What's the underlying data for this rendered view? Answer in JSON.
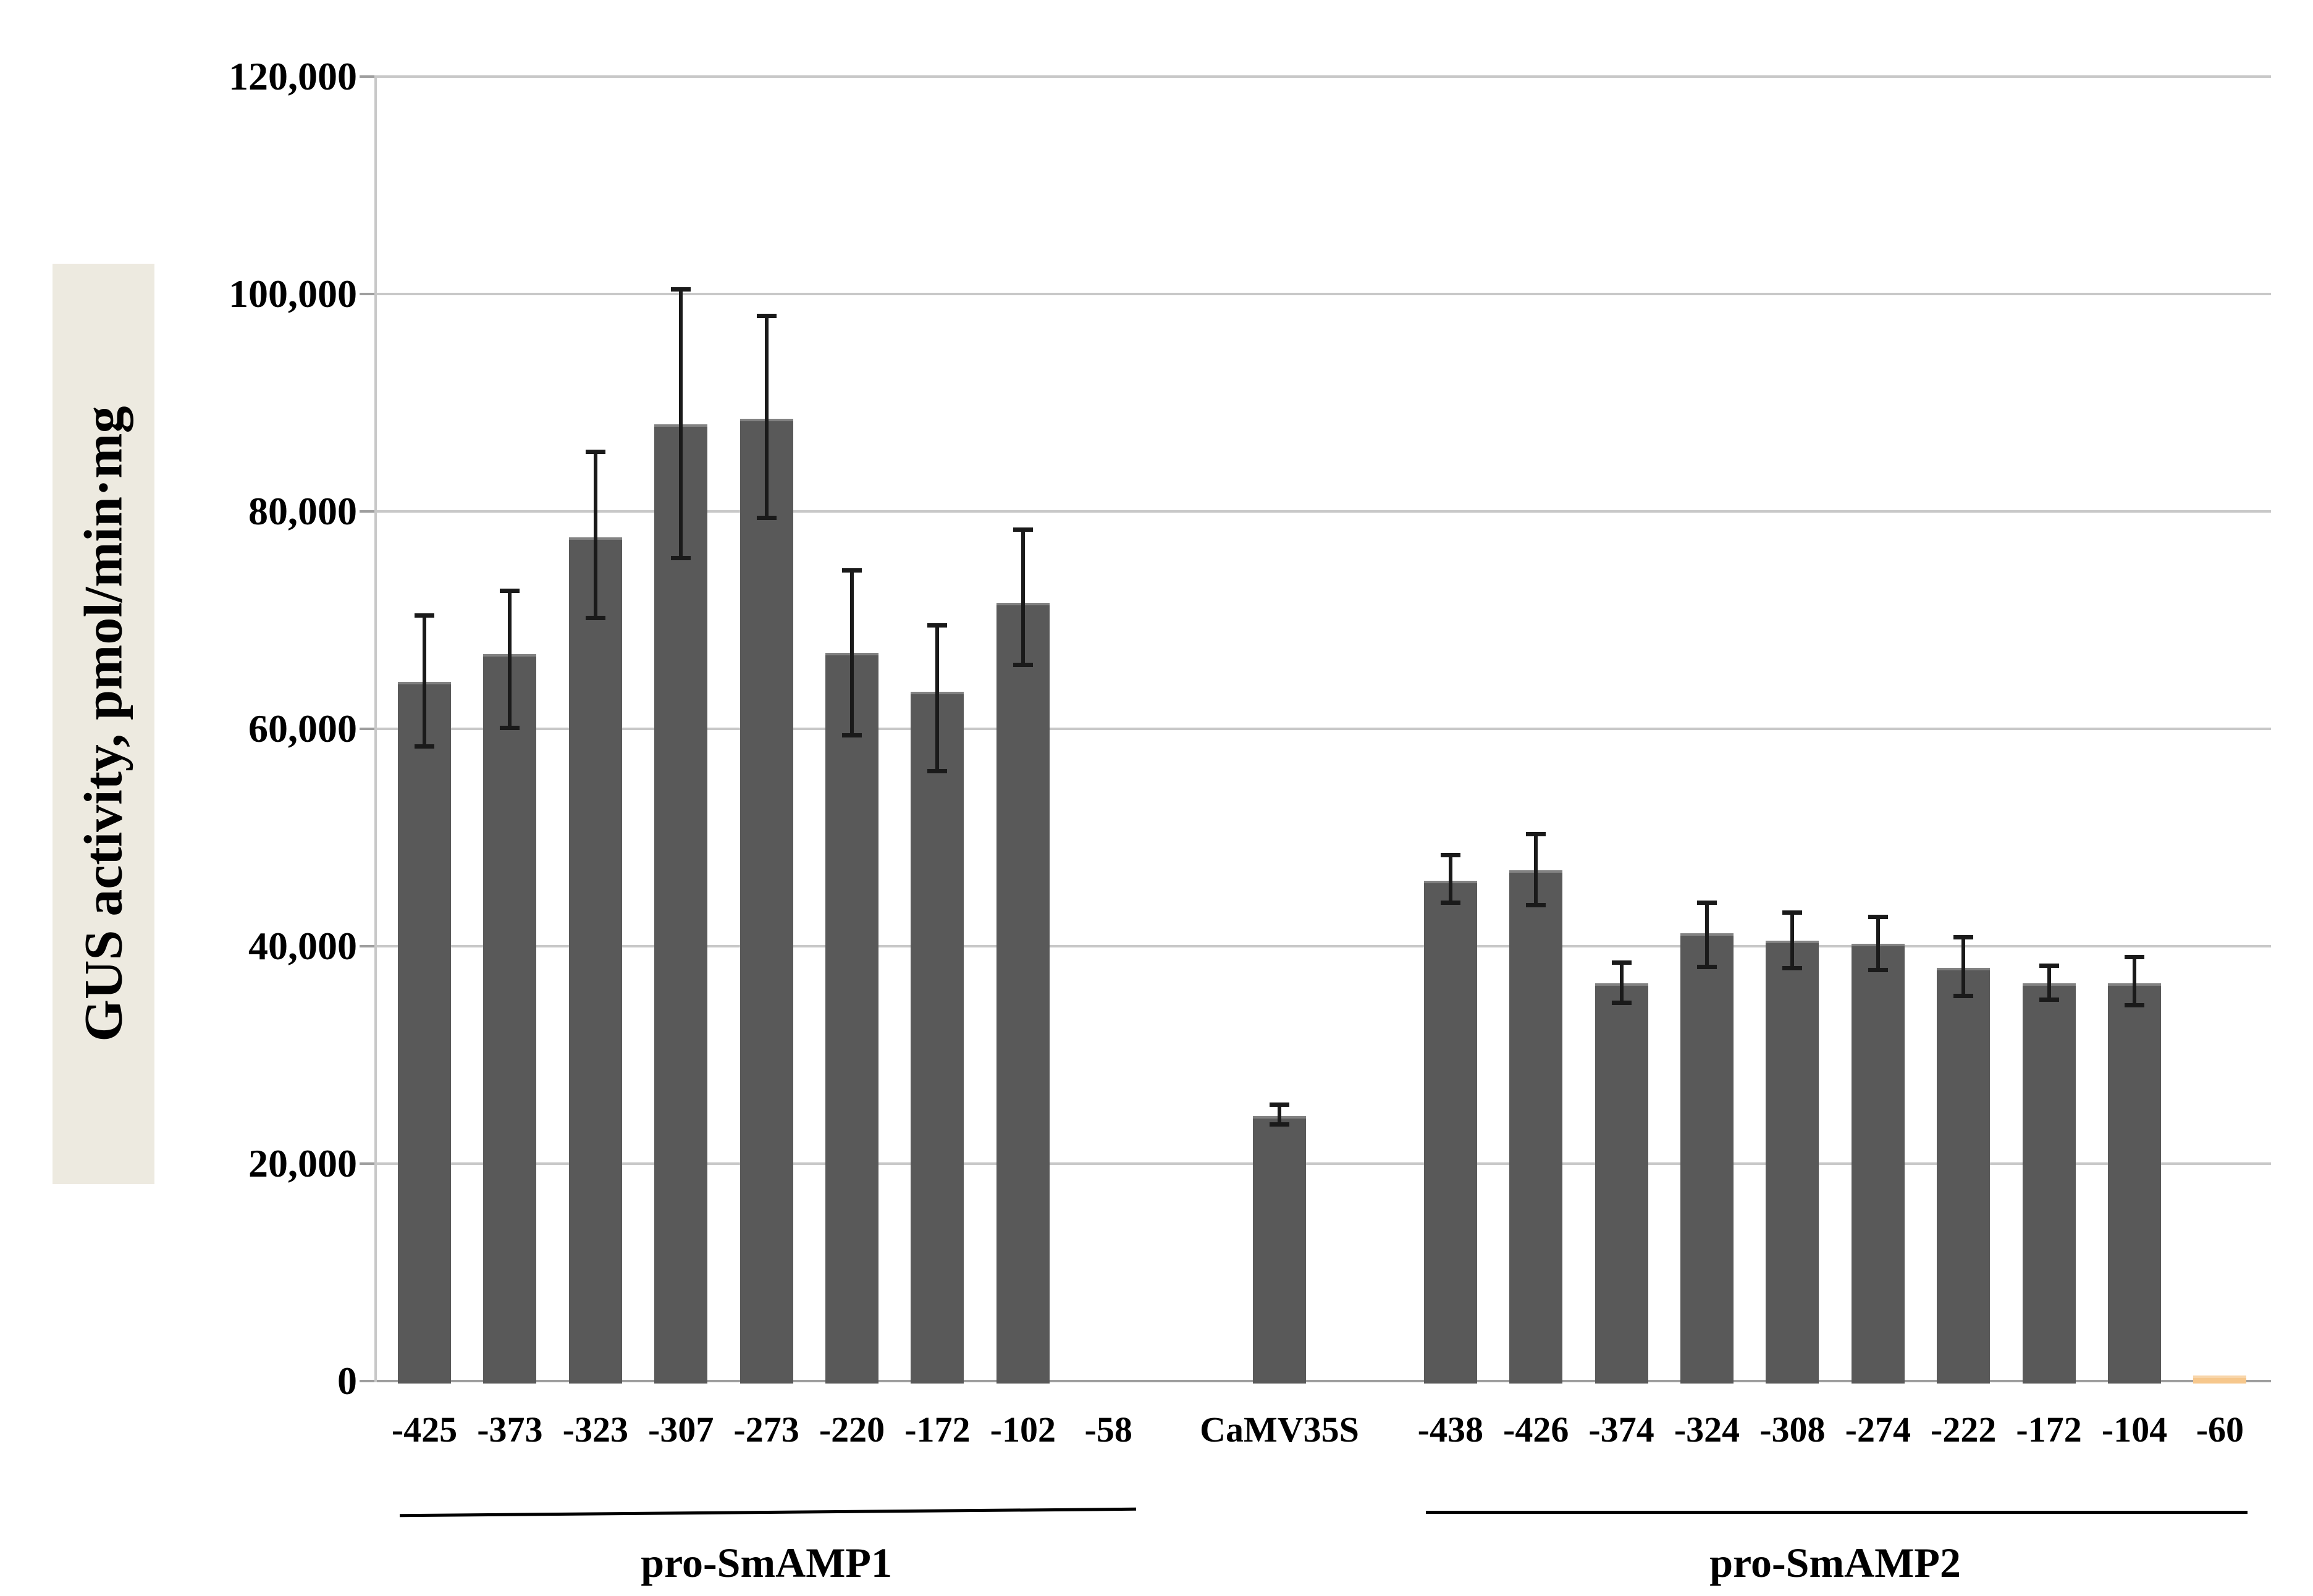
{
  "chart_data": {
    "type": "bar",
    "title": "",
    "xlabel": "",
    "ylabel": "GUS activity, pmol/min·mg",
    "ylim": [
      0,
      120000
    ],
    "ytick_step": 20000,
    "ytick_labels": [
      "0",
      "20,000",
      "40,000",
      "60,000",
      "80,000",
      "100,000",
      "120,000"
    ],
    "grid": true,
    "legend": false,
    "bar_color": "#595959",
    "error_bar_color": "#1a1a1a",
    "gridline_color": "#c8c8c8",
    "axis_color": "#9e9e9e",
    "groups": [
      {
        "name": "pro-SmAMP1",
        "underline": true,
        "bars": [
          {
            "label": "-425",
            "value": 64300,
            "err_low": 58400,
            "err_high": 70400
          },
          {
            "label": "-373",
            "value": 66900,
            "err_low": 60100,
            "err_high": 72700
          },
          {
            "label": "-323",
            "value": 77600,
            "err_low": 70200,
            "err_high": 85500
          },
          {
            "label": "-307",
            "value": 88000,
            "err_low": 75700,
            "err_high": 100400
          },
          {
            "label": "-273",
            "value": 88500,
            "err_low": 79400,
            "err_high": 98000
          },
          {
            "label": "-220",
            "value": 67000,
            "err_low": 59400,
            "err_high": 74600
          },
          {
            "label": "-172",
            "value": 63400,
            "err_low": 56100,
            "err_high": 69500
          },
          {
            "label": "-102",
            "value": 71600,
            "err_low": 65900,
            "err_high": 78300
          },
          {
            "label": "-58",
            "value": 0
          }
        ]
      },
      {
        "name": "",
        "underline": false,
        "bars": [
          {
            "label": "CaMV35S",
            "value": 24400,
            "err_low": 23600,
            "err_high": 25400
          }
        ]
      },
      {
        "name": "pro-SmAMP2",
        "underline": true,
        "bars": [
          {
            "label": "-438",
            "value": 46000,
            "err_low": 44000,
            "err_high": 48400
          },
          {
            "label": "-426",
            "value": 47000,
            "err_low": 43800,
            "err_high": 50300
          },
          {
            "label": "-374",
            "value": 36600,
            "err_low": 34800,
            "err_high": 38500
          },
          {
            "label": "-324",
            "value": 41200,
            "err_low": 38100,
            "err_high": 44000
          },
          {
            "label": "-308",
            "value": 40500,
            "err_low": 38000,
            "err_high": 43100
          },
          {
            "label": "-274",
            "value": 40200,
            "err_low": 37800,
            "err_high": 42700
          },
          {
            "label": "-222",
            "value": 38000,
            "err_low": 35400,
            "err_high": 40800
          },
          {
            "label": "-172",
            "value": 36600,
            "err_low": 35100,
            "err_high": 38200
          },
          {
            "label": "-104",
            "value": 36600,
            "err_low": 34600,
            "err_high": 39000
          },
          {
            "label": "-60",
            "value": 500,
            "color": "#f6c78c"
          }
        ]
      }
    ]
  }
}
